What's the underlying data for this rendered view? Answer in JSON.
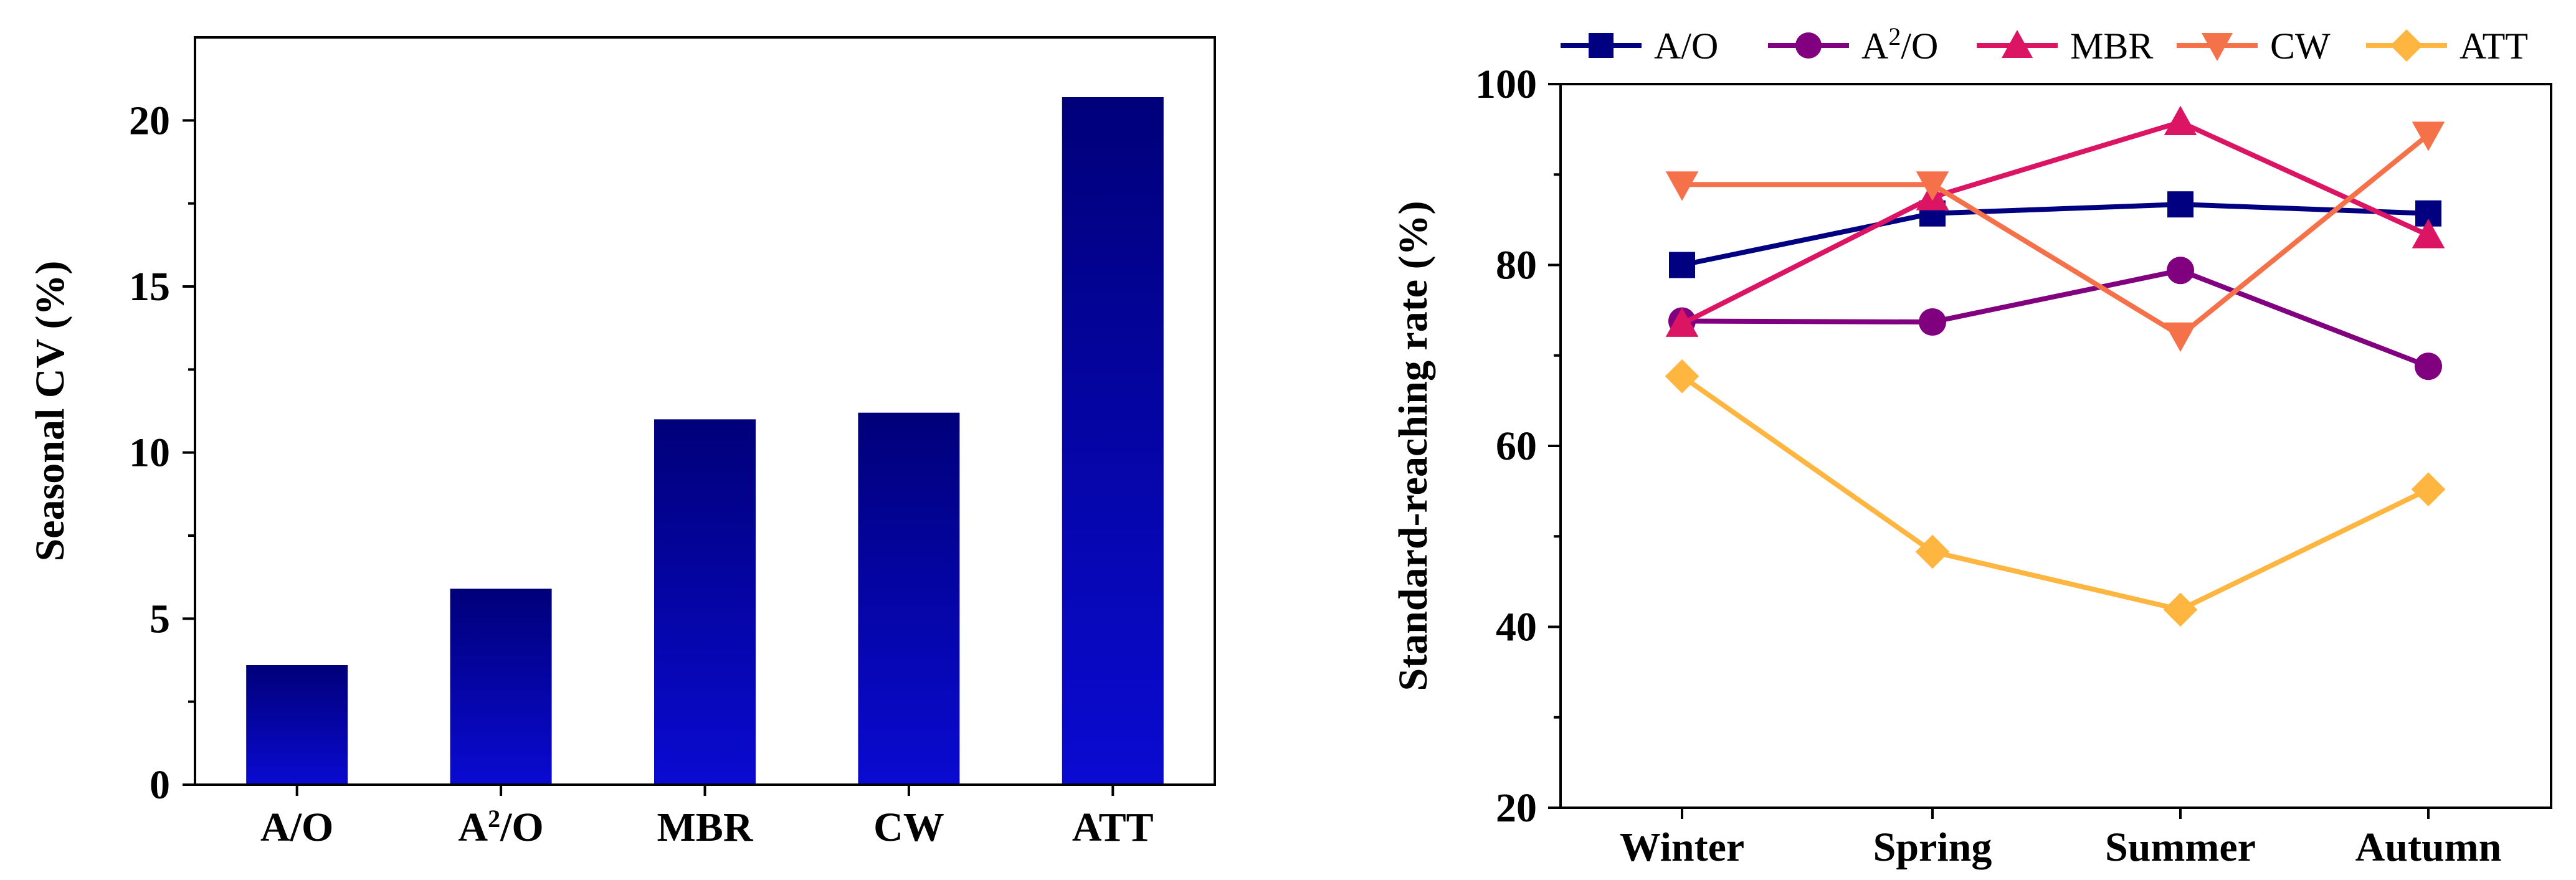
{
  "chart_data": [
    {
      "type": "bar",
      "title": "",
      "xlabel": "",
      "ylabel": "Seasonal CV (%)",
      "categories": [
        "A/O",
        "A²/O",
        "MBR",
        "CW",
        "ATT"
      ],
      "category_labels": [
        {
          "base": "A",
          "sup": "",
          "rest": "/O"
        },
        {
          "base": "A",
          "sup": "2",
          "rest": "/O"
        },
        {
          "base": "MBR",
          "sup": "",
          "rest": ""
        },
        {
          "base": "CW",
          "sup": "",
          "rest": ""
        },
        {
          "base": "ATT",
          "sup": "",
          "rest": ""
        }
      ],
      "values": [
        3.6,
        5.9,
        11.0,
        11.2,
        20.7
      ],
      "ylim": [
        0,
        22.5
      ],
      "yticks": [
        0,
        5,
        10,
        15,
        20
      ],
      "bar_color_top": "#00007a",
      "bar_color_bottom": "#0a0ad2"
    },
    {
      "type": "line",
      "title": "",
      "xlabel": "",
      "ylabel": "Standard-reaching rate (%)",
      "categories": [
        "Winter",
        "Spring",
        "Summer",
        "Autumn"
      ],
      "ylim": [
        20,
        100
      ],
      "yticks": [
        20,
        40,
        60,
        80,
        100
      ],
      "legend_position": "top",
      "series": [
        {
          "name": "A/O",
          "label_base": "A",
          "label_sup": "",
          "label_rest": "/O",
          "marker": "square",
          "color": "#000080",
          "values": [
            80.0,
            85.7,
            86.7,
            85.7
          ]
        },
        {
          "name": "A²/O",
          "label_base": "A",
          "label_sup": "2",
          "label_rest": "/O",
          "marker": "circle",
          "color": "#800080",
          "values": [
            73.8,
            73.7,
            79.4,
            68.8
          ]
        },
        {
          "name": "MBR",
          "label_base": "MBR",
          "label_sup": "",
          "label_rest": "",
          "marker": "triangle-up",
          "color": "#dc1464",
          "values": [
            73.5,
            87.5,
            95.8,
            83.3
          ]
        },
        {
          "name": "CW",
          "label_base": "CW",
          "label_sup": "",
          "label_rest": "",
          "marker": "triangle-down",
          "color": "#f5714a",
          "values": [
            88.9,
            88.9,
            72.2,
            94.4
          ]
        },
        {
          "name": "ATT",
          "label_base": "ATT",
          "label_sup": "",
          "label_rest": "",
          "marker": "diamond",
          "color": "#ffb640",
          "values": [
            67.7,
            48.3,
            41.9,
            55.2
          ]
        }
      ]
    }
  ]
}
